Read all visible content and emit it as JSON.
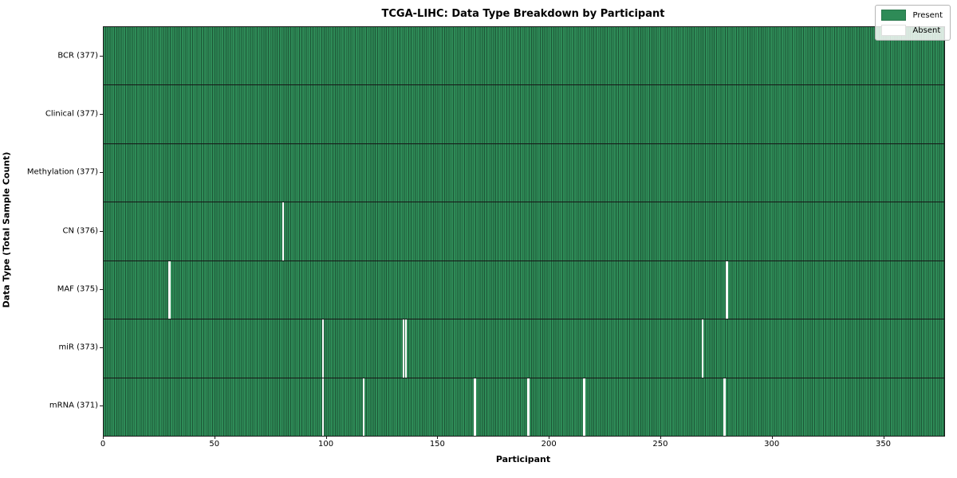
{
  "chart_data": {
    "type": "heatmap",
    "title": "TCGA-LIHC: Data Type Breakdown by Participant",
    "xlabel": "Participant",
    "ylabel": "Data Type (Total Sample Count)",
    "n_participants": 377,
    "x_range": [
      0,
      377
    ],
    "x_ticks": [
      0,
      50,
      100,
      150,
      200,
      250,
      300,
      350
    ],
    "legend": {
      "position": "upper right",
      "entries": [
        {
          "label": "Present",
          "color": "#2e8b57"
        },
        {
          "label": "Absent",
          "color": "#ffffff"
        }
      ]
    },
    "colors": {
      "present_fill": "#2e8b57",
      "present_edge": "#1d5737",
      "absent_fill": "#ffffff",
      "row_divider": "#161616"
    },
    "grid": "cell-edges-on",
    "rows": [
      {
        "label": "BCR (377)",
        "data_type": "BCR",
        "present_count": 377,
        "absent_participants": []
      },
      {
        "label": "Clinical (377)",
        "data_type": "Clinical",
        "present_count": 377,
        "absent_participants": []
      },
      {
        "label": "Methylation (377)",
        "data_type": "Methylation",
        "present_count": 377,
        "absent_participants": []
      },
      {
        "label": "CN (376)",
        "data_type": "CN",
        "present_count": 376,
        "absent_participants": [
          80
        ]
      },
      {
        "label": "MAF (375)",
        "data_type": "MAF",
        "present_count": 375,
        "absent_participants": [
          29,
          279
        ]
      },
      {
        "label": "miR (373)",
        "data_type": "miR",
        "present_count": 373,
        "absent_participants": [
          98,
          134,
          135,
          268
        ]
      },
      {
        "label": "mRNA (371)",
        "data_type": "mRNA",
        "present_count": 371,
        "absent_participants": [
          98,
          116,
          166,
          190,
          215,
          278
        ]
      }
    ]
  }
}
